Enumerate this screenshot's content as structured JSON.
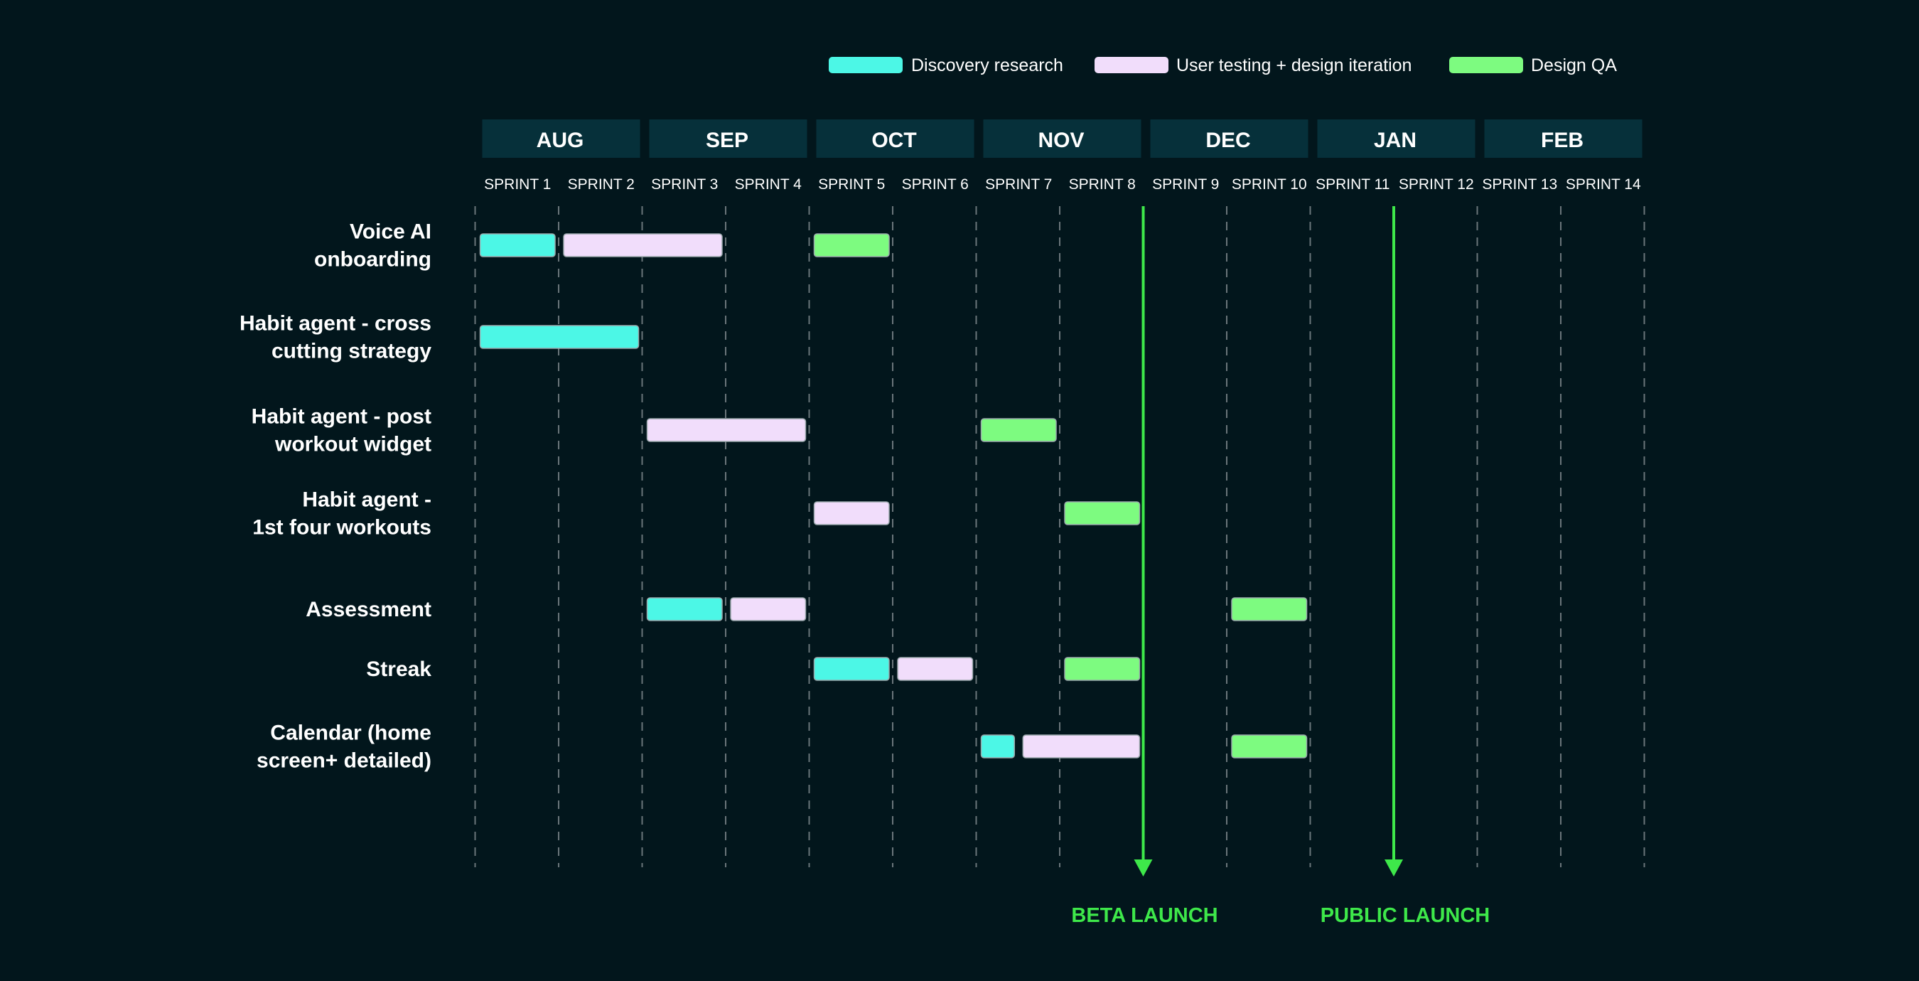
{
  "chart_data": {
    "type": "gantt",
    "legend": [
      {
        "key": "discovery",
        "label": "Discovery research",
        "color": "#4cf7e6"
      },
      {
        "key": "testing",
        "label": "User testing + design iteration",
        "color": "#f1ddfb"
      },
      {
        "key": "qa",
        "label": "Design QA",
        "color": "#7dfb80"
      }
    ],
    "months": [
      "AUG",
      "SEP",
      "OCT",
      "NOV",
      "DEC",
      "JAN",
      "FEB"
    ],
    "sprints": [
      "SPRINT 1",
      "SPRINT 2",
      "SPRINT 3",
      "SPRINT 4",
      "SPRINT 5",
      "SPRINT 6",
      "SPRINT 7",
      "SPRINT 8",
      "SPRINT 9",
      "SPRINT 10",
      "SPRINT 11",
      "SPRINT 12",
      "SPRINT 13",
      "SPRINT 14"
    ],
    "rows": [
      {
        "label": [
          "Voice AI",
          "onboarding"
        ],
        "tasks": [
          {
            "phase": "discovery",
            "start": 1,
            "end": 2
          },
          {
            "phase": "testing",
            "start": 2,
            "end": 4
          },
          {
            "phase": "qa",
            "start": 5,
            "end": 6
          }
        ]
      },
      {
        "label": [
          "Habit agent - cross",
          "cutting strategy"
        ],
        "tasks": [
          {
            "phase": "discovery",
            "start": 1,
            "end": 3
          }
        ]
      },
      {
        "label": [
          "Habit agent - post",
          "workout widget"
        ],
        "tasks": [
          {
            "phase": "testing",
            "start": 3,
            "end": 5
          },
          {
            "phase": "qa",
            "start": 7,
            "end": 8
          }
        ]
      },
      {
        "label": [
          "Habit agent -",
          "1st four workouts"
        ],
        "tasks": [
          {
            "phase": "testing",
            "start": 5,
            "end": 6
          },
          {
            "phase": "qa",
            "start": 8,
            "end": 9
          }
        ]
      },
      {
        "label": [
          "Assessment"
        ],
        "tasks": [
          {
            "phase": "discovery",
            "start": 3,
            "end": 4
          },
          {
            "phase": "testing",
            "start": 4,
            "end": 5
          },
          {
            "phase": "qa",
            "start": 10,
            "end": 11
          }
        ]
      },
      {
        "label": [
          "Streak"
        ],
        "tasks": [
          {
            "phase": "discovery",
            "start": 5,
            "end": 6
          },
          {
            "phase": "testing",
            "start": 6,
            "end": 7
          },
          {
            "phase": "qa",
            "start": 8,
            "end": 9
          }
        ]
      },
      {
        "label": [
          "Calendar (home",
          "screen+ detailed)"
        ],
        "tasks": [
          {
            "phase": "discovery",
            "start": 7,
            "end": 7.5
          },
          {
            "phase": "testing",
            "start": 7.5,
            "end": 9
          },
          {
            "phase": "qa",
            "start": 10,
            "end": 11
          }
        ]
      }
    ],
    "milestones": [
      {
        "label": "BETA LAUNCH",
        "at_sprint_boundary": 9
      },
      {
        "label": "PUBLIC LAUNCH",
        "at_sprint_boundary": 12
      }
    ],
    "colors": {
      "background": "#02161c",
      "month_header": "#06303a",
      "milestone": "#3ee84a",
      "gridline": "#6a757a"
    }
  }
}
